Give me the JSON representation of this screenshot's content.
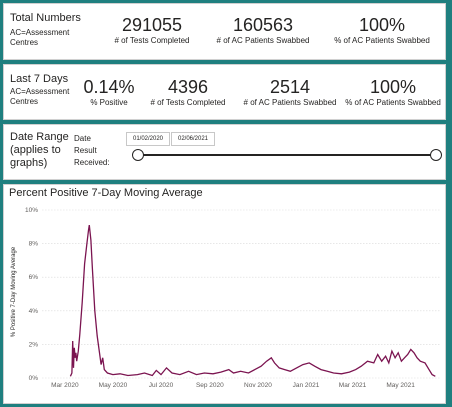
{
  "total": {
    "title": "Total Numbers",
    "subtitle": "AC=Assessment Centres",
    "kpis": [
      {
        "value": "291055",
        "label": "# of Tests Completed"
      },
      {
        "value": "160563",
        "label": "# of AC Patients Swabbed"
      },
      {
        "value": "100%",
        "label": "% of AC Patients Swabbed"
      }
    ]
  },
  "last7": {
    "title": "Last 7 Days",
    "subtitle": "AC=Assessment Centres",
    "kpis": [
      {
        "value": "0.14%",
        "label": "% Positive"
      },
      {
        "value": "4396",
        "label": "# of Tests Completed"
      },
      {
        "value": "2514",
        "label": "# of AC Patients Swabbed"
      },
      {
        "value": "100%",
        "label": "% of AC Patients Swabbed"
      }
    ]
  },
  "date_range": {
    "title_line1": "Date Range",
    "title_line2": "(applies to",
    "title_line3": "graphs)",
    "field_label_1": "Date",
    "field_label_2": "Result",
    "field_label_3": "Received:",
    "start": "01/02/2020",
    "end": "02/06/2021",
    "slider": {
      "start_fraction": 0.0,
      "end_fraction": 1.0
    }
  },
  "colors": {
    "background": "#1f7f7f",
    "line": "#7b1450",
    "grid": "#d9d9d9"
  },
  "chart_data": {
    "type": "line",
    "title": "Percent Positive 7-Day Moving Average",
    "ylabel": "% Positive 7-Day Moving Average",
    "xlabel": "",
    "ylim": [
      0,
      10
    ],
    "xlim": [
      "2020-02-01",
      "2021-06-20"
    ],
    "y_ticks": [
      "0%",
      "2%",
      "4%",
      "6%",
      "8%",
      "10%"
    ],
    "x_ticks": [
      {
        "date": "2020-03-01",
        "label": "Mar 2020"
      },
      {
        "date": "2020-05-01",
        "label": "May 2020"
      },
      {
        "date": "2020-07-01",
        "label": "Jul 2020"
      },
      {
        "date": "2020-09-01",
        "label": "Sep 2020"
      },
      {
        "date": "2020-11-01",
        "label": "Nov 2020"
      },
      {
        "date": "2021-01-01",
        "label": "Jan 2021"
      },
      {
        "date": "2021-03-01",
        "label": "Mar 2021"
      },
      {
        "date": "2021-05-01",
        "label": "May 2021"
      }
    ],
    "grid": true,
    "series": [
      {
        "points": [
          [
            "2020-03-08",
            0.1
          ],
          [
            "2020-03-10",
            0.3
          ],
          [
            "2020-03-11",
            2.2
          ],
          [
            "2020-03-12",
            0.6
          ],
          [
            "2020-03-13",
            1.8
          ],
          [
            "2020-03-14",
            1.2
          ],
          [
            "2020-03-15",
            1.5
          ],
          [
            "2020-03-16",
            1.0
          ],
          [
            "2020-03-18",
            1.6
          ],
          [
            "2020-03-20",
            2.6
          ],
          [
            "2020-03-23",
            4.5
          ],
          [
            "2020-03-26",
            6.8
          ],
          [
            "2020-03-29",
            8.0
          ],
          [
            "2020-03-31",
            8.8
          ],
          [
            "2020-04-01",
            9.1
          ],
          [
            "2020-04-03",
            8.2
          ],
          [
            "2020-04-05",
            6.5
          ],
          [
            "2020-04-08",
            4.0
          ],
          [
            "2020-04-11",
            2.5
          ],
          [
            "2020-04-14",
            1.5
          ],
          [
            "2020-04-16",
            0.8
          ],
          [
            "2020-04-18",
            1.2
          ],
          [
            "2020-04-20",
            0.5
          ],
          [
            "2020-04-24",
            0.3
          ],
          [
            "2020-05-01",
            0.2
          ],
          [
            "2020-05-10",
            0.25
          ],
          [
            "2020-05-20",
            0.15
          ],
          [
            "2020-06-01",
            0.2
          ],
          [
            "2020-06-10",
            0.3
          ],
          [
            "2020-06-20",
            0.15
          ],
          [
            "2020-06-25",
            0.45
          ],
          [
            "2020-07-01",
            0.2
          ],
          [
            "2020-07-08",
            0.6
          ],
          [
            "2020-07-15",
            0.3
          ],
          [
            "2020-07-25",
            0.2
          ],
          [
            "2020-08-05",
            0.4
          ],
          [
            "2020-08-15",
            0.2
          ],
          [
            "2020-08-25",
            0.3
          ],
          [
            "2020-09-05",
            0.25
          ],
          [
            "2020-09-15",
            0.35
          ],
          [
            "2020-09-25",
            0.5
          ],
          [
            "2020-10-01",
            0.3
          ],
          [
            "2020-10-10",
            0.4
          ],
          [
            "2020-10-20",
            0.3
          ],
          [
            "2020-10-28",
            0.5
          ],
          [
            "2020-11-05",
            0.7
          ],
          [
            "2020-11-12",
            1.0
          ],
          [
            "2020-11-18",
            1.2
          ],
          [
            "2020-11-22",
            0.9
          ],
          [
            "2020-11-28",
            0.6
          ],
          [
            "2020-12-05",
            0.5
          ],
          [
            "2020-12-12",
            0.4
          ],
          [
            "2020-12-20",
            0.6
          ],
          [
            "2020-12-28",
            0.8
          ],
          [
            "2021-01-05",
            0.9
          ],
          [
            "2021-01-12",
            0.7
          ],
          [
            "2021-01-20",
            0.5
          ],
          [
            "2021-01-28",
            0.4
          ],
          [
            "2021-02-05",
            0.3
          ],
          [
            "2021-02-15",
            0.25
          ],
          [
            "2021-02-25",
            0.35
          ],
          [
            "2021-03-05",
            0.5
          ],
          [
            "2021-03-12",
            0.7
          ],
          [
            "2021-03-20",
            1.0
          ],
          [
            "2021-03-28",
            0.9
          ],
          [
            "2021-04-02",
            1.4
          ],
          [
            "2021-04-07",
            1.0
          ],
          [
            "2021-04-12",
            1.3
          ],
          [
            "2021-04-16",
            0.9
          ],
          [
            "2021-04-20",
            1.6
          ],
          [
            "2021-04-24",
            1.2
          ],
          [
            "2021-04-28",
            1.5
          ],
          [
            "2021-05-02",
            1.0
          ],
          [
            "2021-05-06",
            1.2
          ],
          [
            "2021-05-10",
            1.4
          ],
          [
            "2021-05-14",
            1.7
          ],
          [
            "2021-05-18",
            1.5
          ],
          [
            "2021-05-22",
            1.2
          ],
          [
            "2021-05-26",
            1.0
          ],
          [
            "2021-06-01",
            0.9
          ],
          [
            "2021-06-06",
            0.5
          ],
          [
            "2021-06-10",
            0.2
          ],
          [
            "2021-06-14",
            0.1
          ]
        ]
      }
    ]
  }
}
